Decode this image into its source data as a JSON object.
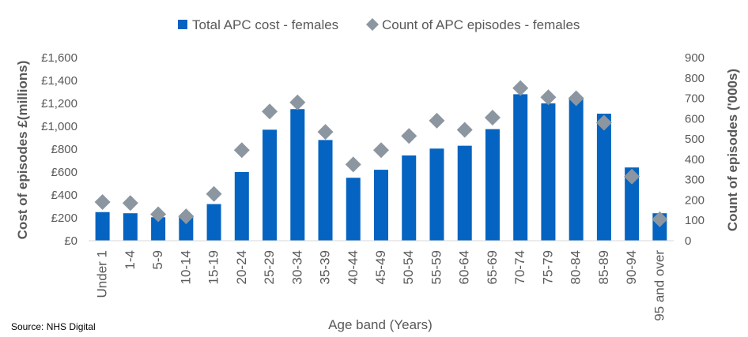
{
  "chart_data": {
    "type": "bar",
    "xlabel": "Age band (Years)",
    "ylabel_left": "Cost of episodes £(millions)",
    "ylabel_right": "Count of episodes ('000s)",
    "ylim_left": [
      0,
      1600
    ],
    "ylim_right": [
      0,
      900
    ],
    "yticks_left": [
      "£0",
      "£200",
      "£400",
      "£600",
      "£800",
      "£1,000",
      "£1,200",
      "£1,400",
      "£1,600"
    ],
    "yticks_right": [
      "0",
      "100",
      "200",
      "300",
      "400",
      "500",
      "600",
      "700",
      "800",
      "900"
    ],
    "legend_position": "top",
    "categories": [
      "Under 1",
      "1-4",
      "5-9",
      "10-14",
      "15-19",
      "20-24",
      "25-29",
      "30-34",
      "35-39",
      "40-44",
      "45-49",
      "50-54",
      "55-59",
      "60-64",
      "65-69",
      "70-74",
      "75-79",
      "80-84",
      "85-89",
      "90-94",
      "95 and over"
    ],
    "series": [
      {
        "name": "Total APC cost - females",
        "type": "bar",
        "axis": "left",
        "color": "#0563c1",
        "values": [
          250,
          240,
          205,
          215,
          320,
          600,
          970,
          1150,
          880,
          550,
          620,
          745,
          805,
          830,
          975,
          1280,
          1200,
          1250,
          1110,
          640,
          240
        ]
      },
      {
        "name": "Count of APC episodes - females",
        "type": "scatter",
        "axis": "right",
        "color": "#8c96a0",
        "marker": "diamond",
        "values": [
          190,
          185,
          130,
          120,
          230,
          445,
          635,
          680,
          535,
          375,
          445,
          515,
          590,
          545,
          605,
          750,
          705,
          700,
          580,
          315,
          105
        ]
      }
    ]
  },
  "source": "Source: NHS Digital"
}
